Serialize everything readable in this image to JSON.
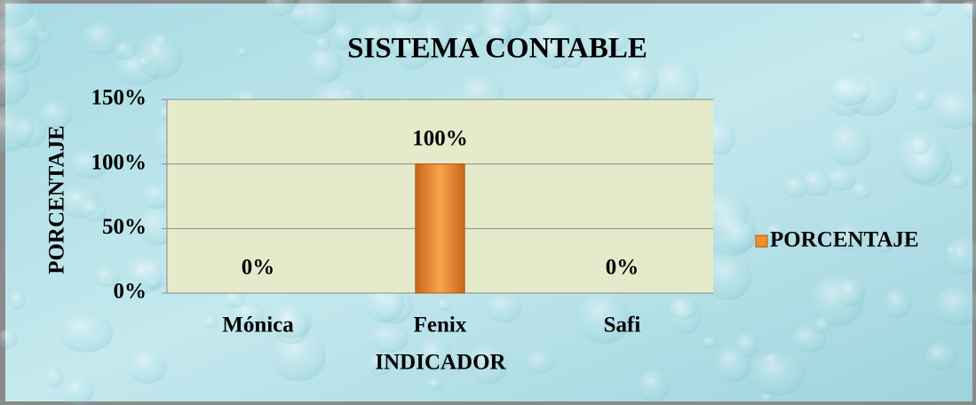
{
  "chart_data": {
    "type": "bar",
    "title": "SISTEMA CONTABLE",
    "x_label": "INDICADOR",
    "y_label": "PORCENTAJE",
    "categories": [
      "Mónica",
      "Fenix",
      "Safi"
    ],
    "series": [
      {
        "name": "PORCENTAJE",
        "color": "#f0902a",
        "values": [
          0,
          100,
          0
        ],
        "value_labels": [
          "0%",
          "100%",
          "0%"
        ]
      }
    ],
    "ylim": [
      0,
      150
    ],
    "yticks": [
      {
        "value": 0,
        "label": "0%"
      },
      {
        "value": 50,
        "label": "50%"
      },
      {
        "value": 100,
        "label": "100%"
      },
      {
        "value": 150,
        "label": "150%"
      }
    ],
    "grid": true,
    "legend": "right"
  }
}
